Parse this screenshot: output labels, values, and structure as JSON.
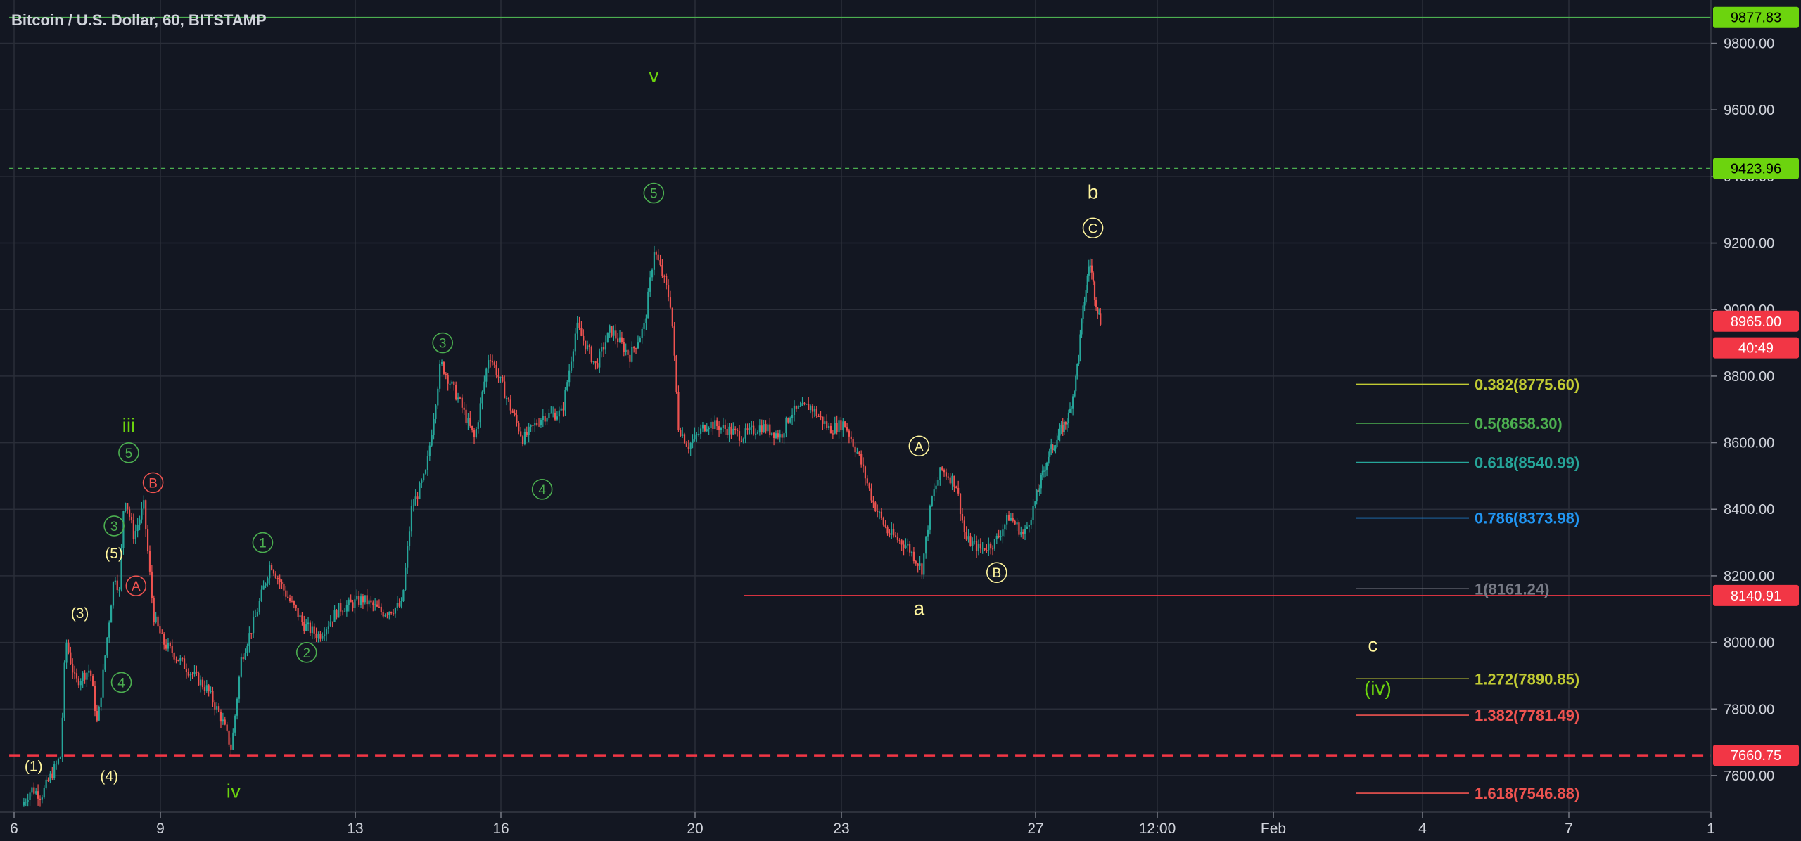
{
  "header": {
    "title": "Bitcoin / U.S. Dollar, 60, BITSTAMP"
  },
  "colors": {
    "background": "#131722",
    "grid": "#2a2e39",
    "axis_text": "#d1d4dc",
    "candle_up": "#26a69a",
    "candle_down": "#ef5350",
    "label_green": "#4caf50",
    "label_yellow": "#fff59d",
    "label_red": "#ef5350",
    "price_red": "#f23645",
    "price_green": "#6cd40e"
  },
  "chart_data": {
    "type": "candlestick",
    "title": "Bitcoin / U.S. Dollar, 60, BITSTAMP",
    "x_axis_ticks": [
      "6",
      "9",
      "13",
      "16",
      "20",
      "23",
      "27",
      "12:00",
      "Feb",
      "4",
      "7",
      "1"
    ],
    "y_axis_ticks": [
      "9800.00",
      "9600.00",
      "9400.00",
      "9200.00",
      "9000.00",
      "8800.00",
      "8600.00",
      "8400.00",
      "8200.00",
      "8000.00",
      "7800.00",
      "7600.00"
    ],
    "ylim": [
      7490,
      9930
    ],
    "price_path": [
      [
        6.2,
        7510
      ],
      [
        6.4,
        7560
      ],
      [
        6.6,
        7540
      ],
      [
        6.8,
        7600
      ],
      [
        7.0,
        7660
      ],
      [
        7.1,
        8010
      ],
      [
        7.3,
        7880
      ],
      [
        7.6,
        7920
      ],
      [
        7.75,
        7750
      ],
      [
        7.9,
        7950
      ],
      [
        8.1,
        8210
      ],
      [
        8.2,
        8150
      ],
      [
        8.3,
        8450
      ],
      [
        8.5,
        8320
      ],
      [
        8.7,
        8410
      ],
      [
        8.9,
        8080
      ],
      [
        9.1,
        8000
      ],
      [
        9.6,
        7920
      ],
      [
        10.0,
        7860
      ],
      [
        10.3,
        7770
      ],
      [
        10.5,
        7680
      ],
      [
        10.7,
        7950
      ],
      [
        11.0,
        8080
      ],
      [
        11.3,
        8240
      ],
      [
        11.6,
        8150
      ],
      [
        12.0,
        8050
      ],
      [
        12.3,
        8020
      ],
      [
        12.7,
        8100
      ],
      [
        13.2,
        8130
      ],
      [
        13.6,
        8090
      ],
      [
        14.0,
        8110
      ],
      [
        14.2,
        8400
      ],
      [
        14.5,
        8510
      ],
      [
        14.8,
        8840
      ],
      [
        15.2,
        8720
      ],
      [
        15.5,
        8610
      ],
      [
        15.8,
        8870
      ],
      [
        16.2,
        8720
      ],
      [
        16.5,
        8610
      ],
      [
        16.9,
        8680
      ],
      [
        17.3,
        8690
      ],
      [
        17.6,
        8950
      ],
      [
        18.0,
        8830
      ],
      [
        18.3,
        8940
      ],
      [
        18.7,
        8860
      ],
      [
        19.0,
        8950
      ],
      [
        19.2,
        9180
      ],
      [
        19.4,
        9090
      ],
      [
        19.55,
        9010
      ],
      [
        19.7,
        8650
      ],
      [
        19.9,
        8590
      ],
      [
        20.3,
        8660
      ],
      [
        20.7,
        8640
      ],
      [
        21.0,
        8620
      ],
      [
        21.4,
        8650
      ],
      [
        21.8,
        8620
      ],
      [
        22.0,
        8690
      ],
      [
        22.4,
        8710
      ],
      [
        22.8,
        8640
      ],
      [
        23.1,
        8660
      ],
      [
        23.4,
        8560
      ],
      [
        23.7,
        8420
      ],
      [
        24.0,
        8330
      ],
      [
        24.4,
        8290
      ],
      [
        24.7,
        8220
      ],
      [
        24.9,
        8430
      ],
      [
        25.1,
        8520
      ],
      [
        25.4,
        8480
      ],
      [
        25.6,
        8310
      ],
      [
        25.9,
        8280
      ],
      [
        26.2,
        8300
      ],
      [
        26.5,
        8380
      ],
      [
        26.8,
        8320
      ],
      [
        27.1,
        8450
      ],
      [
        27.4,
        8560
      ],
      [
        27.7,
        8620
      ],
      [
        28.0,
        8680
      ],
      [
        28.2,
        8790
      ],
      [
        28.4,
        8990
      ],
      [
        28.6,
        9150
      ],
      [
        28.75,
        9040
      ],
      [
        28.9,
        8965
      ]
    ],
    "last_price": 8965.0,
    "price_labels": [
      {
        "text": "9877.83",
        "value": 9877.83,
        "color": "#6cd40e"
      },
      {
        "text": "9423.96",
        "value": 9423.96,
        "color": "#6cd40e"
      },
      {
        "text": "8965.00",
        "value": 8965.0,
        "color": "#f23645"
      },
      {
        "text": "40:49",
        "value": 8885.0,
        "color": "#f23645"
      },
      {
        "text": "8140.91",
        "value": 8140.91,
        "color": "#f23645"
      },
      {
        "text": "7660.75",
        "value": 7660.75,
        "color": "#f23645"
      }
    ],
    "horizontal_lines": [
      {
        "value": 9877.83,
        "color": "#4caf50",
        "style": "solid",
        "from_x": 5.9
      },
      {
        "value": 9423.96,
        "color": "#4caf50",
        "style": "dashed",
        "from_x": 5.9
      },
      {
        "value": 8140.91,
        "color": "#f23645",
        "style": "solid",
        "from_x": 21.0
      },
      {
        "value": 7660.75,
        "color": "#f23645",
        "style": "dashed-thick",
        "from_x": 5.9
      }
    ],
    "fibonacci_levels": [
      {
        "text": "0.382(8775.60)",
        "value": 8775.6,
        "color": "#c0ca33"
      },
      {
        "text": "0.5(8658.30)",
        "value": 8658.3,
        "color": "#4caf50"
      },
      {
        "text": "0.618(8540.99)",
        "value": 8540.99,
        "color": "#26a69a"
      },
      {
        "text": "0.786(8373.98)",
        "value": 8373.98,
        "color": "#2196f3"
      },
      {
        "text": "1(8161.24)",
        "value": 8161.24,
        "color": "#787b86"
      },
      {
        "text": "1.272(7890.85)",
        "value": 7890.85,
        "color": "#c0ca33"
      },
      {
        "text": "1.382(7781.49)",
        "value": 7781.49,
        "color": "#ef5350"
      },
      {
        "text": "1.618(7546.88)",
        "value": 7546.88,
        "color": "#ef5350"
      }
    ],
    "annotations": [
      {
        "text": "(1)",
        "x": 6.4,
        "y": 7630,
        "color": "#fff59d",
        "circle": false
      },
      {
        "text": "(3)",
        "x": 7.35,
        "y": 8090,
        "color": "#fff59d",
        "circle": false
      },
      {
        "text": "(4)",
        "x": 7.95,
        "y": 7600,
        "color": "#fff59d",
        "circle": false
      },
      {
        "text": "(5)",
        "x": 8.05,
        "y": 8270,
        "color": "#fff59d",
        "circle": false
      },
      {
        "text": "4",
        "x": 8.2,
        "y": 7880,
        "color": "#4caf50",
        "circle": true
      },
      {
        "text": "A",
        "x": 8.5,
        "y": 8170,
        "color": "#ef5350",
        "circle": true
      },
      {
        "text": "3",
        "x": 8.05,
        "y": 8350,
        "color": "#4caf50",
        "circle": true
      },
      {
        "text": "B",
        "x": 8.85,
        "y": 8480,
        "color": "#ef5350",
        "circle": true
      },
      {
        "text": "5",
        "x": 8.35,
        "y": 8570,
        "color": "#4caf50",
        "circle": true
      },
      {
        "text": "iii",
        "x": 8.35,
        "y": 8650,
        "color": "#6cd40e",
        "circle": false
      },
      {
        "text": "iv",
        "x": 10.5,
        "y": 7550,
        "color": "#6cd40e",
        "circle": false
      },
      {
        "text": "1",
        "x": 11.1,
        "y": 8300,
        "color": "#4caf50",
        "circle": true
      },
      {
        "text": "2",
        "x": 12.0,
        "y": 7970,
        "color": "#4caf50",
        "circle": true
      },
      {
        "text": "3",
        "x": 14.8,
        "y": 8900,
        "color": "#4caf50",
        "circle": true
      },
      {
        "text": "4",
        "x": 16.85,
        "y": 8460,
        "color": "#4caf50",
        "circle": true
      },
      {
        "text": "5",
        "x": 19.15,
        "y": 9350,
        "color": "#4caf50",
        "circle": true
      },
      {
        "text": "v",
        "x": 19.15,
        "y": 9700,
        "color": "#6cd40e",
        "circle": false
      },
      {
        "text": "A",
        "x": 24.6,
        "y": 8590,
        "color": "#fff59d",
        "circle": true
      },
      {
        "text": "a",
        "x": 24.6,
        "y": 8100,
        "color": "#fff59d",
        "circle": false
      },
      {
        "text": "B",
        "x": 26.2,
        "y": 8210,
        "color": "#fff59d",
        "circle": true
      },
      {
        "text": "b",
        "x": 28.65,
        "y": 9350,
        "color": "#fff59d",
        "circle": false
      },
      {
        "text": "C",
        "x": 28.65,
        "y": 9245,
        "color": "#fff59d",
        "circle": true
      },
      {
        "text": "c",
        "x": 34.0,
        "y": 7990,
        "color": "#fff59d",
        "circle": false
      },
      {
        "text": "(iv)",
        "x": 34.1,
        "y": 7860,
        "color": "#6cd40e",
        "circle": false
      }
    ]
  }
}
